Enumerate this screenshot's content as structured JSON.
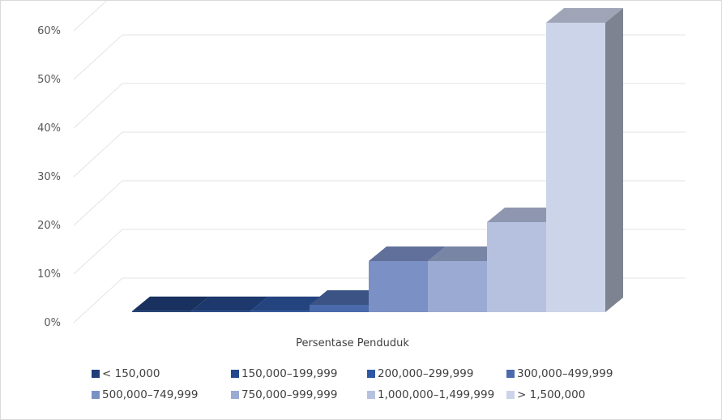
{
  "chart_data": {
    "type": "bar",
    "style": "3d-column",
    "xlabel": "Persentase Penduduk",
    "ylabel": "",
    "ylim": [
      0,
      0.6
    ],
    "yticks": [
      "0%",
      "10%",
      "20%",
      "30%",
      "40%",
      "50%",
      "60%"
    ],
    "grid": true,
    "legend_position": "bottom",
    "series": [
      {
        "name": "< 150,000",
        "value": 0.002,
        "color": "#1f3f7a"
      },
      {
        "name": "150,000–199,999",
        "value": 0.002,
        "color": "#24488c"
      },
      {
        "name": "200,000–299,999",
        "value": 0.002,
        "color": "#2e57a3"
      },
      {
        "name": "300,000–499,999",
        "value": 0.015,
        "color": "#4b6aab"
      },
      {
        "name": "500,000–749,999",
        "value": 0.105,
        "color": "#7b90c5"
      },
      {
        "name": "750,000–999,999",
        "value": 0.105,
        "color": "#9aaad2"
      },
      {
        "name": "1,000,000–1,499,999",
        "value": 0.185,
        "color": "#b6c1e0"
      },
      {
        "name": "> 1,500,000",
        "value": 0.595,
        "color": "#ccd4ea"
      }
    ]
  }
}
